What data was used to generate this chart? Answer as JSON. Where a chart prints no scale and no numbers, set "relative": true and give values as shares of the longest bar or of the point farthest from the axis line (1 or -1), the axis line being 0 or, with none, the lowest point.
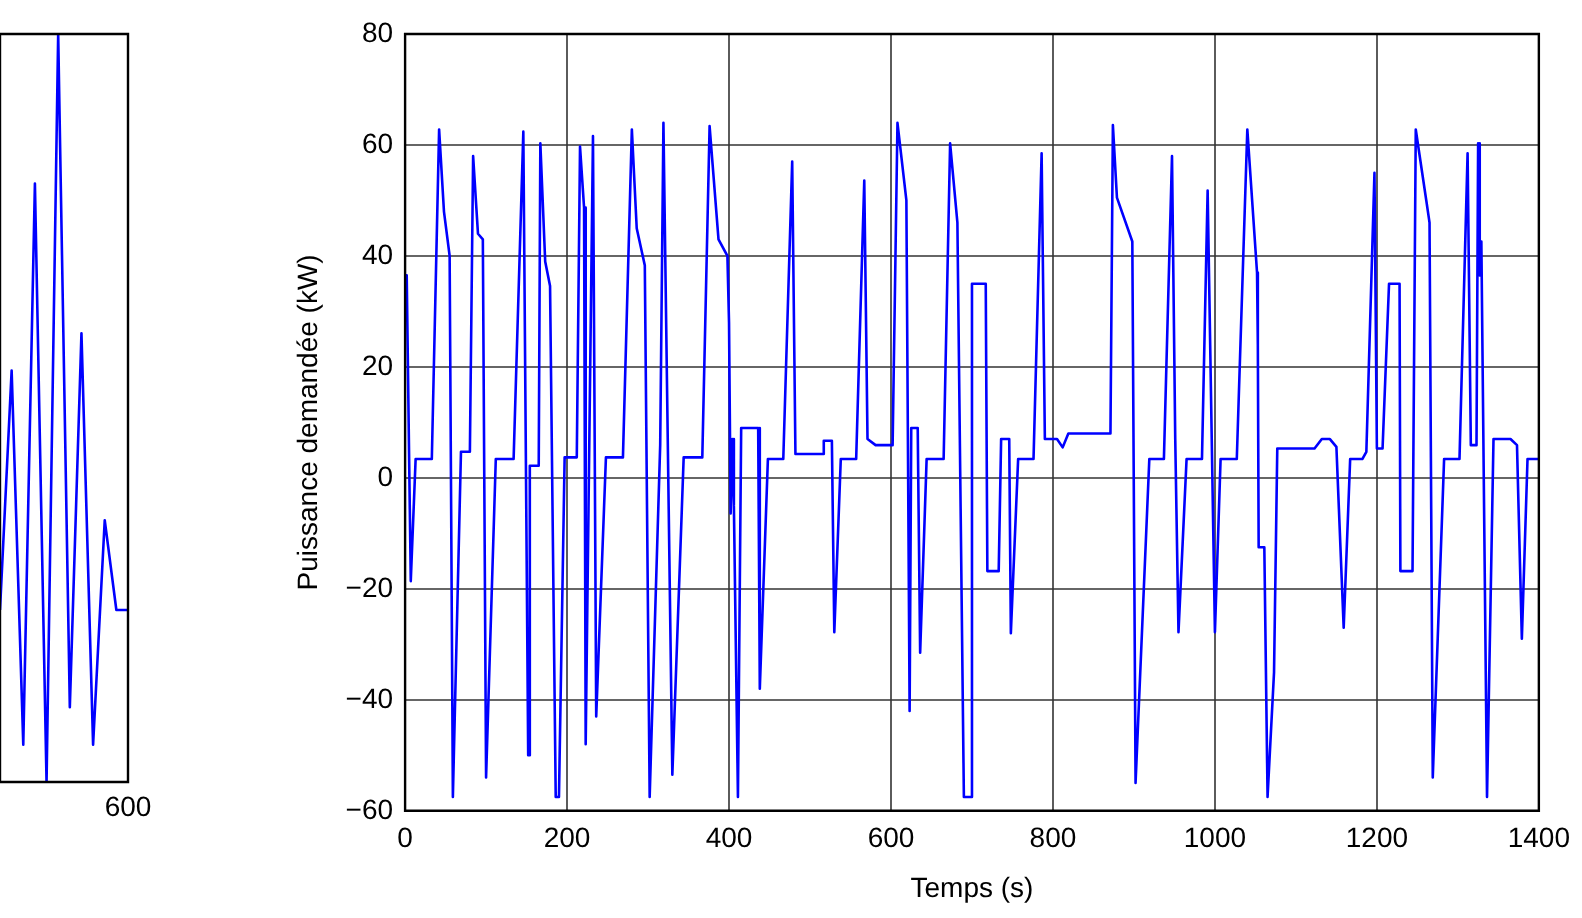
{
  "chart_data": [
    {
      "type": "line",
      "relative": true,
      "annotations": [
        "600"
      ],
      "categories": [
        null,
        null,
        null,
        null,
        null,
        null,
        null,
        null,
        null,
        null,
        null,
        null
      ],
      "series": [
        {
          "color": "#0000ff",
          "values": [
            0.23,
            0.55,
            0.05,
            0.8,
            0.0,
            1,
            0.1,
            0.6,
            0.05,
            0.35,
            0.23,
            0.23
          ]
        }
      ]
    },
    {
      "type": "line",
      "xlabel": "Temps (s)",
      "ylabel": "Puissance demandée (kW)",
      "xlim": [
        0,
        1400
      ],
      "ylim": [
        -60,
        80
      ],
      "xticks": [
        0,
        200,
        400,
        600,
        800,
        1000,
        1200,
        1400
      ],
      "yticks": [
        {
          "value": -60,
          "label": "−60"
        },
        {
          "value": -40,
          "label": "−40"
        },
        {
          "value": -20,
          "label": "−20"
        },
        0,
        20,
        40,
        60,
        80
      ],
      "grid": true,
      "series": [
        {
          "color": "#0000ff",
          "x": [
            0,
            2,
            7,
            13,
            33,
            42,
            48,
            55,
            59,
            69,
            80,
            84,
            90,
            96,
            100,
            112,
            134,
            146,
            152,
            154,
            165,
            167,
            173,
            179,
            186,
            190,
            197,
            212,
            216,
            221,
            223,
            232,
            236,
            248,
            269,
            280,
            286,
            296,
            302,
            315,
            319,
            330,
            344,
            367,
            376,
            387,
            398,
            400,
            402,
            404,
            406,
            411,
            415,
            436,
            438,
            448,
            467,
            478,
            482,
            515,
            517,
            527,
            530,
            538,
            557,
            567,
            571,
            581,
            602,
            608,
            619,
            623,
            625,
            633,
            636,
            644,
            665,
            673,
            682,
            690,
            698,
            700,
            717,
            719,
            733,
            736,
            746,
            748,
            757,
            776,
            786,
            790,
            805,
            812,
            819,
            871,
            874,
            879,
            898,
            902,
            919,
            937,
            947,
            951,
            955,
            965,
            984,
            991,
            1000,
            1007,
            1027,
            1040,
            1052,
            1053,
            1054,
            1061,
            1065,
            1073,
            1077,
            1123,
            1132,
            1142,
            1150,
            1159,
            1167,
            1182,
            1187,
            1197,
            1200,
            1207,
            1215,
            1228,
            1229,
            1244,
            1248,
            1261,
            1265,
            1269,
            1283,
            1302,
            1312,
            1316,
            1323,
            1325,
            1327,
            1329,
            1336,
            1344,
            1365,
            1373,
            1379,
            1386,
            1400
          ],
          "values": [
            36.5,
            36.5,
            -18.6,
            3.4,
            3.4,
            62.8,
            48,
            40,
            -57.5,
            4.7,
            4.7,
            58,
            44,
            43,
            -54,
            3.4,
            3.4,
            62.4,
            -50,
            2.2,
            2.2,
            60.3,
            39,
            34.6,
            -57.5,
            -57.5,
            3.7,
            3.7,
            59.7,
            48.7,
            -48,
            61.6,
            -43,
            3.7,
            3.7,
            62.8,
            45,
            38.3,
            -57.5,
            5.9,
            64,
            -53.5,
            3.7,
            3.7,
            63.4,
            43,
            40,
            28,
            -6.4,
            7,
            -5,
            -57.5,
            9,
            9,
            -38,
            3.4,
            3.4,
            57,
            4.3,
            4.3,
            6.7,
            6.7,
            -27.8,
            3.4,
            3.4,
            53.6,
            7,
            5.9,
            5.9,
            64,
            50,
            -42,
            9,
            9,
            -31.5,
            3.4,
            3.4,
            60.3,
            46,
            -57.5,
            -57.5,
            35,
            35,
            -16.8,
            -16.8,
            7,
            7,
            -28,
            3.4,
            3.4,
            58.5,
            7,
            7,
            5.5,
            8,
            8,
            63.6,
            50.5,
            42.6,
            -55,
            3.4,
            3.4,
            58,
            7,
            -27.8,
            3.4,
            3.4,
            51.8,
            -27.8,
            3.4,
            3.4,
            62.8,
            37,
            24,
            -12.5,
            -12.5,
            -57.5,
            -35,
            5.3,
            5.3,
            7,
            7,
            5.6,
            -27,
            3.4,
            3.4,
            4.7,
            55,
            5.3,
            5.3,
            35,
            35,
            -16.8,
            -16.8,
            62.8,
            50,
            46,
            -54,
            3.4,
            3.4,
            58.5,
            5.9,
            5.9,
            60.3,
            36.5,
            42.6,
            -57.5,
            7,
            7,
            5.9,
            -29,
            3.4,
            3.4
          ]
        }
      ]
    }
  ]
}
